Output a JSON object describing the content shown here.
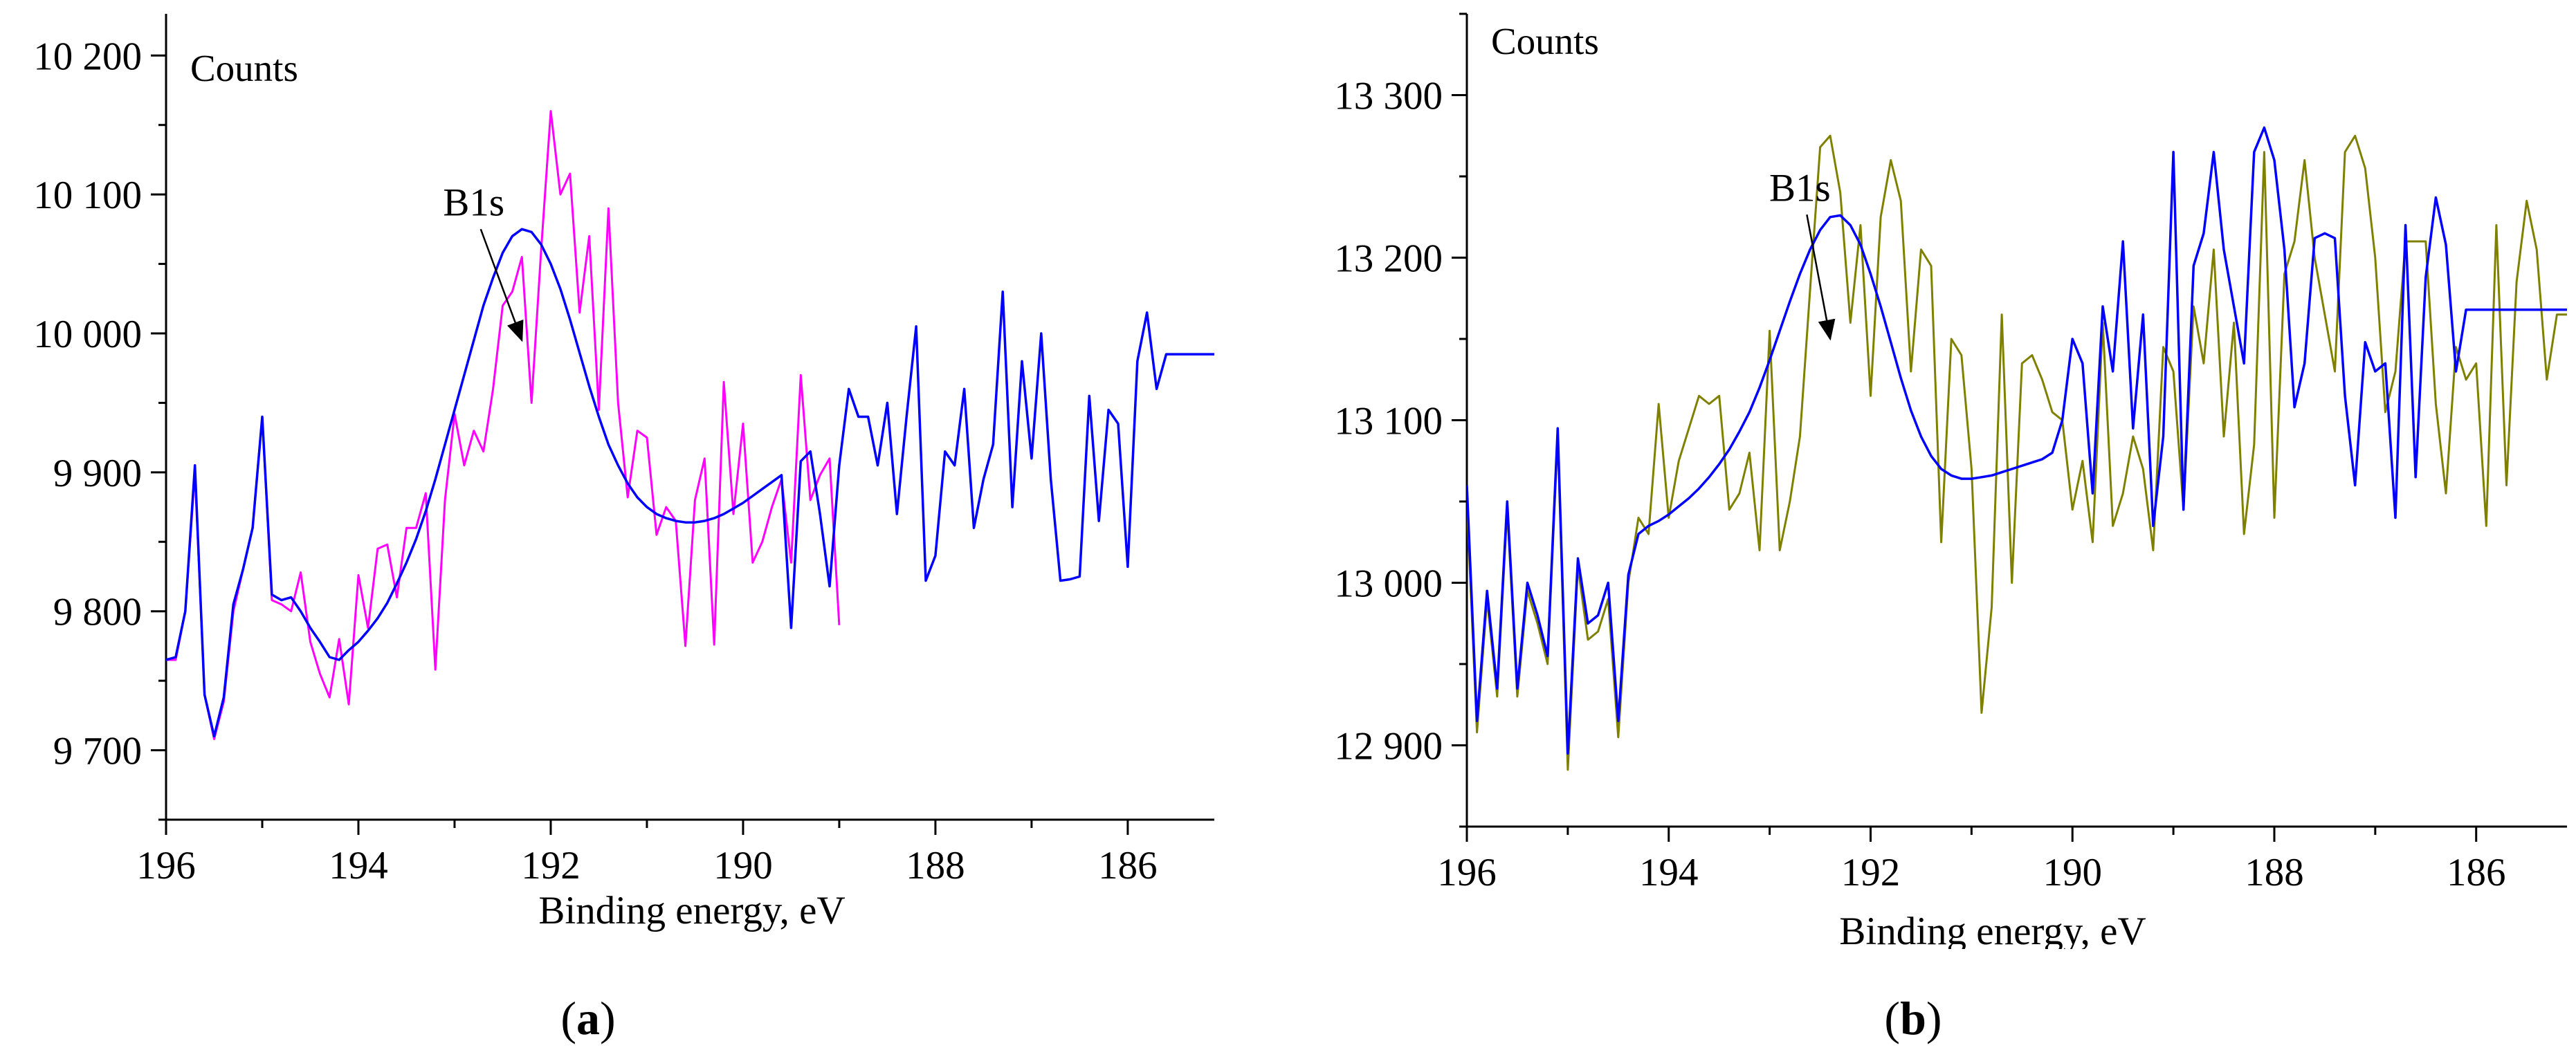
{
  "colors": {
    "axis": "#000000",
    "fit": "#0000ff",
    "raw_a": "#ff00ff",
    "raw_b": "#808000"
  },
  "chart_data": [
    {
      "type": "line",
      "panel_label": {
        "open": "(",
        "letter": "a",
        "close": ")"
      },
      "ylabel": "Counts",
      "xlabel": "Binding energy, eV",
      "x_reversed": true,
      "xlim": [
        196,
        185.1
      ],
      "ylim": [
        9650,
        10230
      ],
      "x_ticks": [
        196,
        194,
        192,
        190,
        188,
        186
      ],
      "x_tick_labels": [
        "196",
        "194",
        "192",
        "190",
        "188",
        "186"
      ],
      "y_ticks": [
        9700,
        9800,
        9900,
        10000,
        10100,
        10200
      ],
      "y_tick_labels": [
        "9 700",
        "9 800",
        "9 900",
        "10 000",
        "10 100",
        "10 200"
      ],
      "annotation": {
        "text": "B1s",
        "text_at": [
          192.8,
          10085
        ],
        "arrow_to": [
          192.3,
          9995
        ]
      },
      "series": [
        {
          "role": "raw",
          "color": "#ff00ff",
          "x": [
            196.0,
            195.9,
            195.8,
            195.7,
            195.6,
            195.5,
            195.4,
            195.3,
            195.2,
            195.1,
            195.0,
            194.9,
            194.8,
            194.7,
            194.6,
            194.5,
            194.4,
            194.3,
            194.2,
            194.1,
            194.0,
            193.9,
            193.8,
            193.7,
            193.6,
            193.5,
            193.4,
            193.3,
            193.2,
            193.1,
            193.0,
            192.9,
            192.8,
            192.7,
            192.6,
            192.5,
            192.4,
            192.3,
            192.2,
            192.1,
            192.0,
            191.9,
            191.8,
            191.7,
            191.6,
            191.5,
            191.4,
            191.3,
            191.2,
            191.1,
            191.0,
            190.9,
            190.8,
            190.7,
            190.6,
            190.5,
            190.4,
            190.3,
            190.2,
            190.1,
            190.0,
            189.9,
            189.8,
            189.7,
            189.6,
            189.5,
            189.4,
            189.3,
            189.2,
            189.1,
            189.0
          ],
          "y": [
            9765,
            9765,
            9800,
            9900,
            9740,
            9708,
            9735,
            9800,
            9830,
            9860,
            9940,
            9808,
            9805,
            9800,
            9828,
            9778,
            9755,
            9738,
            9780,
            9733,
            9826,
            9788,
            9845,
            9848,
            9810,
            9860,
            9860,
            9885,
            9758,
            9880,
            9942,
            9905,
            9930,
            9915,
            9960,
            10020,
            10030,
            10055,
            9950,
            10060,
            10160,
            10100,
            10115,
            10015,
            10070,
            9945,
            10090,
            9950,
            9882,
            9930,
            9925,
            9855,
            9875,
            9865,
            9775,
            9880,
            9910,
            9776,
            9965,
            9870,
            9935,
            9835,
            9850,
            9875,
            9895,
            9835,
            9970,
            9880,
            9898,
            9910,
            9790
          ]
        },
        {
          "role": "fit",
          "color": "#0000ff",
          "x": [
            196.0,
            195.9,
            195.8,
            195.7,
            195.6,
            195.5,
            195.4,
            195.3,
            195.2,
            195.1,
            195.0,
            194.9,
            194.8,
            194.7,
            194.6,
            194.5,
            194.4,
            194.3,
            194.2,
            194.1,
            194.0,
            193.9,
            193.8,
            193.7,
            193.6,
            193.5,
            193.4,
            193.3,
            193.2,
            193.1,
            193.0,
            192.9,
            192.8,
            192.7,
            192.6,
            192.5,
            192.4,
            192.3,
            192.2,
            192.1,
            192.0,
            191.9,
            191.8,
            191.7,
            191.6,
            191.5,
            191.4,
            191.3,
            191.2,
            191.1,
            191.0,
            190.9,
            190.8,
            190.7,
            190.6,
            190.5,
            190.4,
            190.3,
            190.2,
            190.1,
            190.0,
            189.9,
            189.8,
            189.7,
            189.6,
            189.5,
            189.4,
            189.3,
            189.2,
            189.1,
            189.0,
            188.9,
            188.8,
            188.7,
            188.6,
            188.5,
            188.4,
            188.3,
            188.2,
            188.1,
            188.0,
            187.9,
            187.8,
            187.7,
            187.6,
            187.5,
            187.4,
            187.3,
            187.2,
            187.1,
            187.0,
            186.9,
            186.8,
            186.7,
            186.6,
            186.5,
            186.4,
            186.3,
            186.2,
            186.1,
            186.0,
            185.9,
            185.8,
            185.7,
            185.6,
            185.5,
            185.4,
            185.3,
            185.2,
            185.1
          ],
          "y": [
            9765,
            9767,
            9800,
            9905,
            9740,
            9710,
            9738,
            9805,
            9830,
            9860,
            9940,
            9812,
            9808,
            9810,
            9800,
            9788,
            9778,
            9767,
            9765,
            9772,
            9778,
            9786,
            9795,
            9806,
            9820,
            9835,
            9852,
            9872,
            9895,
            9920,
            9945,
            9970,
            9995,
            10020,
            10040,
            10058,
            10070,
            10075,
            10073,
            10064,
            10050,
            10032,
            10010,
            9986,
            9962,
            9940,
            9920,
            9905,
            9892,
            9882,
            9875,
            9870,
            9867,
            9865,
            9864,
            9864,
            9865,
            9867,
            9870,
            9874,
            9878,
            9883,
            9888,
            9893,
            9898,
            9788,
            9908,
            9915,
            9870,
            9818,
            9905,
            9960,
            9940,
            9940,
            9905,
            9950,
            9870,
            9940,
            10005,
            9822,
            9840,
            9915,
            9905,
            9960,
            9860,
            9895,
            9920,
            10030,
            9875,
            9980,
            9910,
            10000,
            9895,
            9822,
            9823,
            9825,
            9955,
            9865,
            9945,
            9935,
            9832,
            9980,
            10015,
            9960,
            9985,
            9985,
            9985,
            9985,
            9985,
            9985
          ]
        }
      ]
    },
    {
      "type": "line",
      "panel_label": {
        "open": "(",
        "letter": "b",
        "close": ")"
      },
      "ylabel": "Counts",
      "xlabel": "Binding energy, eV",
      "x_reversed": true,
      "xlim": [
        196,
        185.1
      ],
      "ylim": [
        12850,
        13350
      ],
      "x_ticks": [
        196,
        194,
        192,
        190,
        188,
        186
      ],
      "x_tick_labels": [
        "196",
        "194",
        "192",
        "190",
        "188",
        "186"
      ],
      "y_ticks": [
        12900,
        13000,
        13100,
        13200,
        13300
      ],
      "y_tick_labels": [
        "12 900",
        "13 000",
        "13 100",
        "13 200",
        "13 300"
      ],
      "annotation": {
        "text": "B1s",
        "text_at": [
          192.7,
          13235
        ],
        "arrow_to": [
          192.4,
          13150
        ]
      },
      "series": [
        {
          "role": "raw",
          "color": "#808000",
          "x": [
            196.0,
            195.9,
            195.8,
            195.7,
            195.6,
            195.5,
            195.4,
            195.3,
            195.2,
            195.1,
            195.0,
            194.9,
            194.8,
            194.7,
            194.6,
            194.5,
            194.4,
            194.3,
            194.2,
            194.1,
            194.0,
            193.9,
            193.8,
            193.7,
            193.6,
            193.5,
            193.4,
            193.3,
            193.2,
            193.1,
            193.0,
            192.9,
            192.8,
            192.7,
            192.6,
            192.5,
            192.4,
            192.3,
            192.2,
            192.1,
            192.0,
            191.9,
            191.8,
            191.7,
            191.6,
            191.5,
            191.4,
            191.3,
            191.2,
            191.1,
            191.0,
            190.9,
            190.8,
            190.7,
            190.6,
            190.5,
            190.4,
            190.3,
            190.2,
            190.1,
            190.0,
            189.9,
            189.8,
            189.7,
            189.6,
            189.5,
            189.4,
            189.3,
            189.2,
            189.1,
            189.0,
            188.9,
            188.8,
            188.7,
            188.6,
            188.5,
            188.4,
            188.3,
            188.2,
            188.1,
            188.0,
            187.9,
            187.8,
            187.7,
            187.6,
            187.5,
            187.4,
            187.3,
            187.2,
            187.1,
            187.0,
            186.9,
            186.8,
            186.7,
            186.6,
            186.5,
            186.4,
            186.3,
            186.2,
            186.1,
            186.0,
            185.9,
            185.8,
            185.7,
            185.6,
            185.5,
            185.4,
            185.3,
            185.2,
            185.1
          ],
          "y": [
            13050,
            12908,
            12990,
            12930,
            13045,
            12930,
            12995,
            12975,
            12950,
            13090,
            12885,
            13010,
            12965,
            12970,
            12990,
            12905,
            13000,
            13040,
            13030,
            13110,
            13040,
            13075,
            13095,
            13115,
            13110,
            13115,
            13045,
            13055,
            13080,
            13020,
            13155,
            13020,
            13050,
            13090,
            13180,
            13268,
            13275,
            13240,
            13160,
            13220,
            13115,
            13225,
            13260,
            13235,
            13130,
            13205,
            13195,
            13025,
            13150,
            13140,
            13070,
            12920,
            12985,
            13165,
            13000,
            13135,
            13140,
            13125,
            13105,
            13100,
            13045,
            13075,
            13025,
            13160,
            13035,
            13055,
            13090,
            13070,
            13020,
            13145,
            13130,
            13045,
            13170,
            13135,
            13205,
            13090,
            13160,
            13030,
            13085,
            13265,
            13040,
            13190,
            13210,
            13260,
            13200,
            13165,
            13130,
            13265,
            13275,
            13255,
            13200,
            13105,
            13130,
            13210,
            13210,
            13210,
            13110,
            13055,
            13145,
            13125,
            13135,
            13035,
            13220,
            13060,
            13185,
            13235,
            13205,
            13125,
            13165,
            13165
          ]
        },
        {
          "role": "fit",
          "color": "#0000ff",
          "x": [
            196.0,
            195.9,
            195.8,
            195.7,
            195.6,
            195.5,
            195.4,
            195.3,
            195.2,
            195.1,
            195.0,
            194.9,
            194.8,
            194.7,
            194.6,
            194.5,
            194.4,
            194.3,
            194.2,
            194.1,
            194.0,
            193.9,
            193.8,
            193.7,
            193.6,
            193.5,
            193.4,
            193.3,
            193.2,
            193.1,
            193.0,
            192.9,
            192.8,
            192.7,
            192.6,
            192.5,
            192.4,
            192.3,
            192.2,
            192.1,
            192.0,
            191.9,
            191.8,
            191.7,
            191.6,
            191.5,
            191.4,
            191.3,
            191.2,
            191.1,
            191.0,
            190.9,
            190.8,
            190.7,
            190.6,
            190.5,
            190.4,
            190.3,
            190.2,
            190.1,
            190.0,
            189.9,
            189.8,
            189.7,
            189.6,
            189.5,
            189.4,
            189.3,
            189.2,
            189.1,
            189.0,
            188.9,
            188.8,
            188.7,
            188.6,
            188.5,
            188.4,
            188.3,
            188.2,
            188.1,
            188.0,
            187.9,
            187.8,
            187.7,
            187.6,
            187.5,
            187.4,
            187.3,
            187.2,
            187.1,
            187.0,
            186.9,
            186.8,
            186.7,
            186.6,
            186.5,
            186.4,
            186.3,
            186.2,
            186.1,
            186.0,
            185.9,
            185.8,
            185.7,
            185.6,
            185.5,
            185.4,
            185.3,
            185.2,
            185.1
          ],
          "y": [
            13060,
            12915,
            12995,
            12935,
            13050,
            12935,
            13000,
            12980,
            12955,
            13095,
            12895,
            13015,
            12975,
            12980,
            13000,
            12915,
            13005,
            13030,
            13035,
            13038,
            13042,
            13047,
            13052,
            13058,
            13065,
            13073,
            13082,
            13093,
            13105,
            13120,
            13137,
            13155,
            13173,
            13190,
            13205,
            13217,
            13225,
            13226,
            13220,
            13208,
            13190,
            13170,
            13148,
            13126,
            13106,
            13090,
            13078,
            13070,
            13066,
            13064,
            13064,
            13065,
            13066,
            13068,
            13070,
            13072,
            13074,
            13076,
            13080,
            13100,
            13150,
            13135,
            13055,
            13170,
            13130,
            13210,
            13095,
            13165,
            13035,
            13090,
            13265,
            13045,
            13195,
            13215,
            13265,
            13205,
            13170,
            13135,
            13265,
            13280,
            13260,
            13205,
            13108,
            13135,
            13212,
            13215,
            13212,
            13115,
            13060,
            13148,
            13130,
            13135,
            13040,
            13220,
            13065,
            13188,
            13237,
            13208,
            13130,
            13168,
            13168,
            13168,
            13168,
            13168,
            13168,
            13168,
            13168,
            13168,
            13168,
            13168
          ]
        }
      ]
    }
  ]
}
